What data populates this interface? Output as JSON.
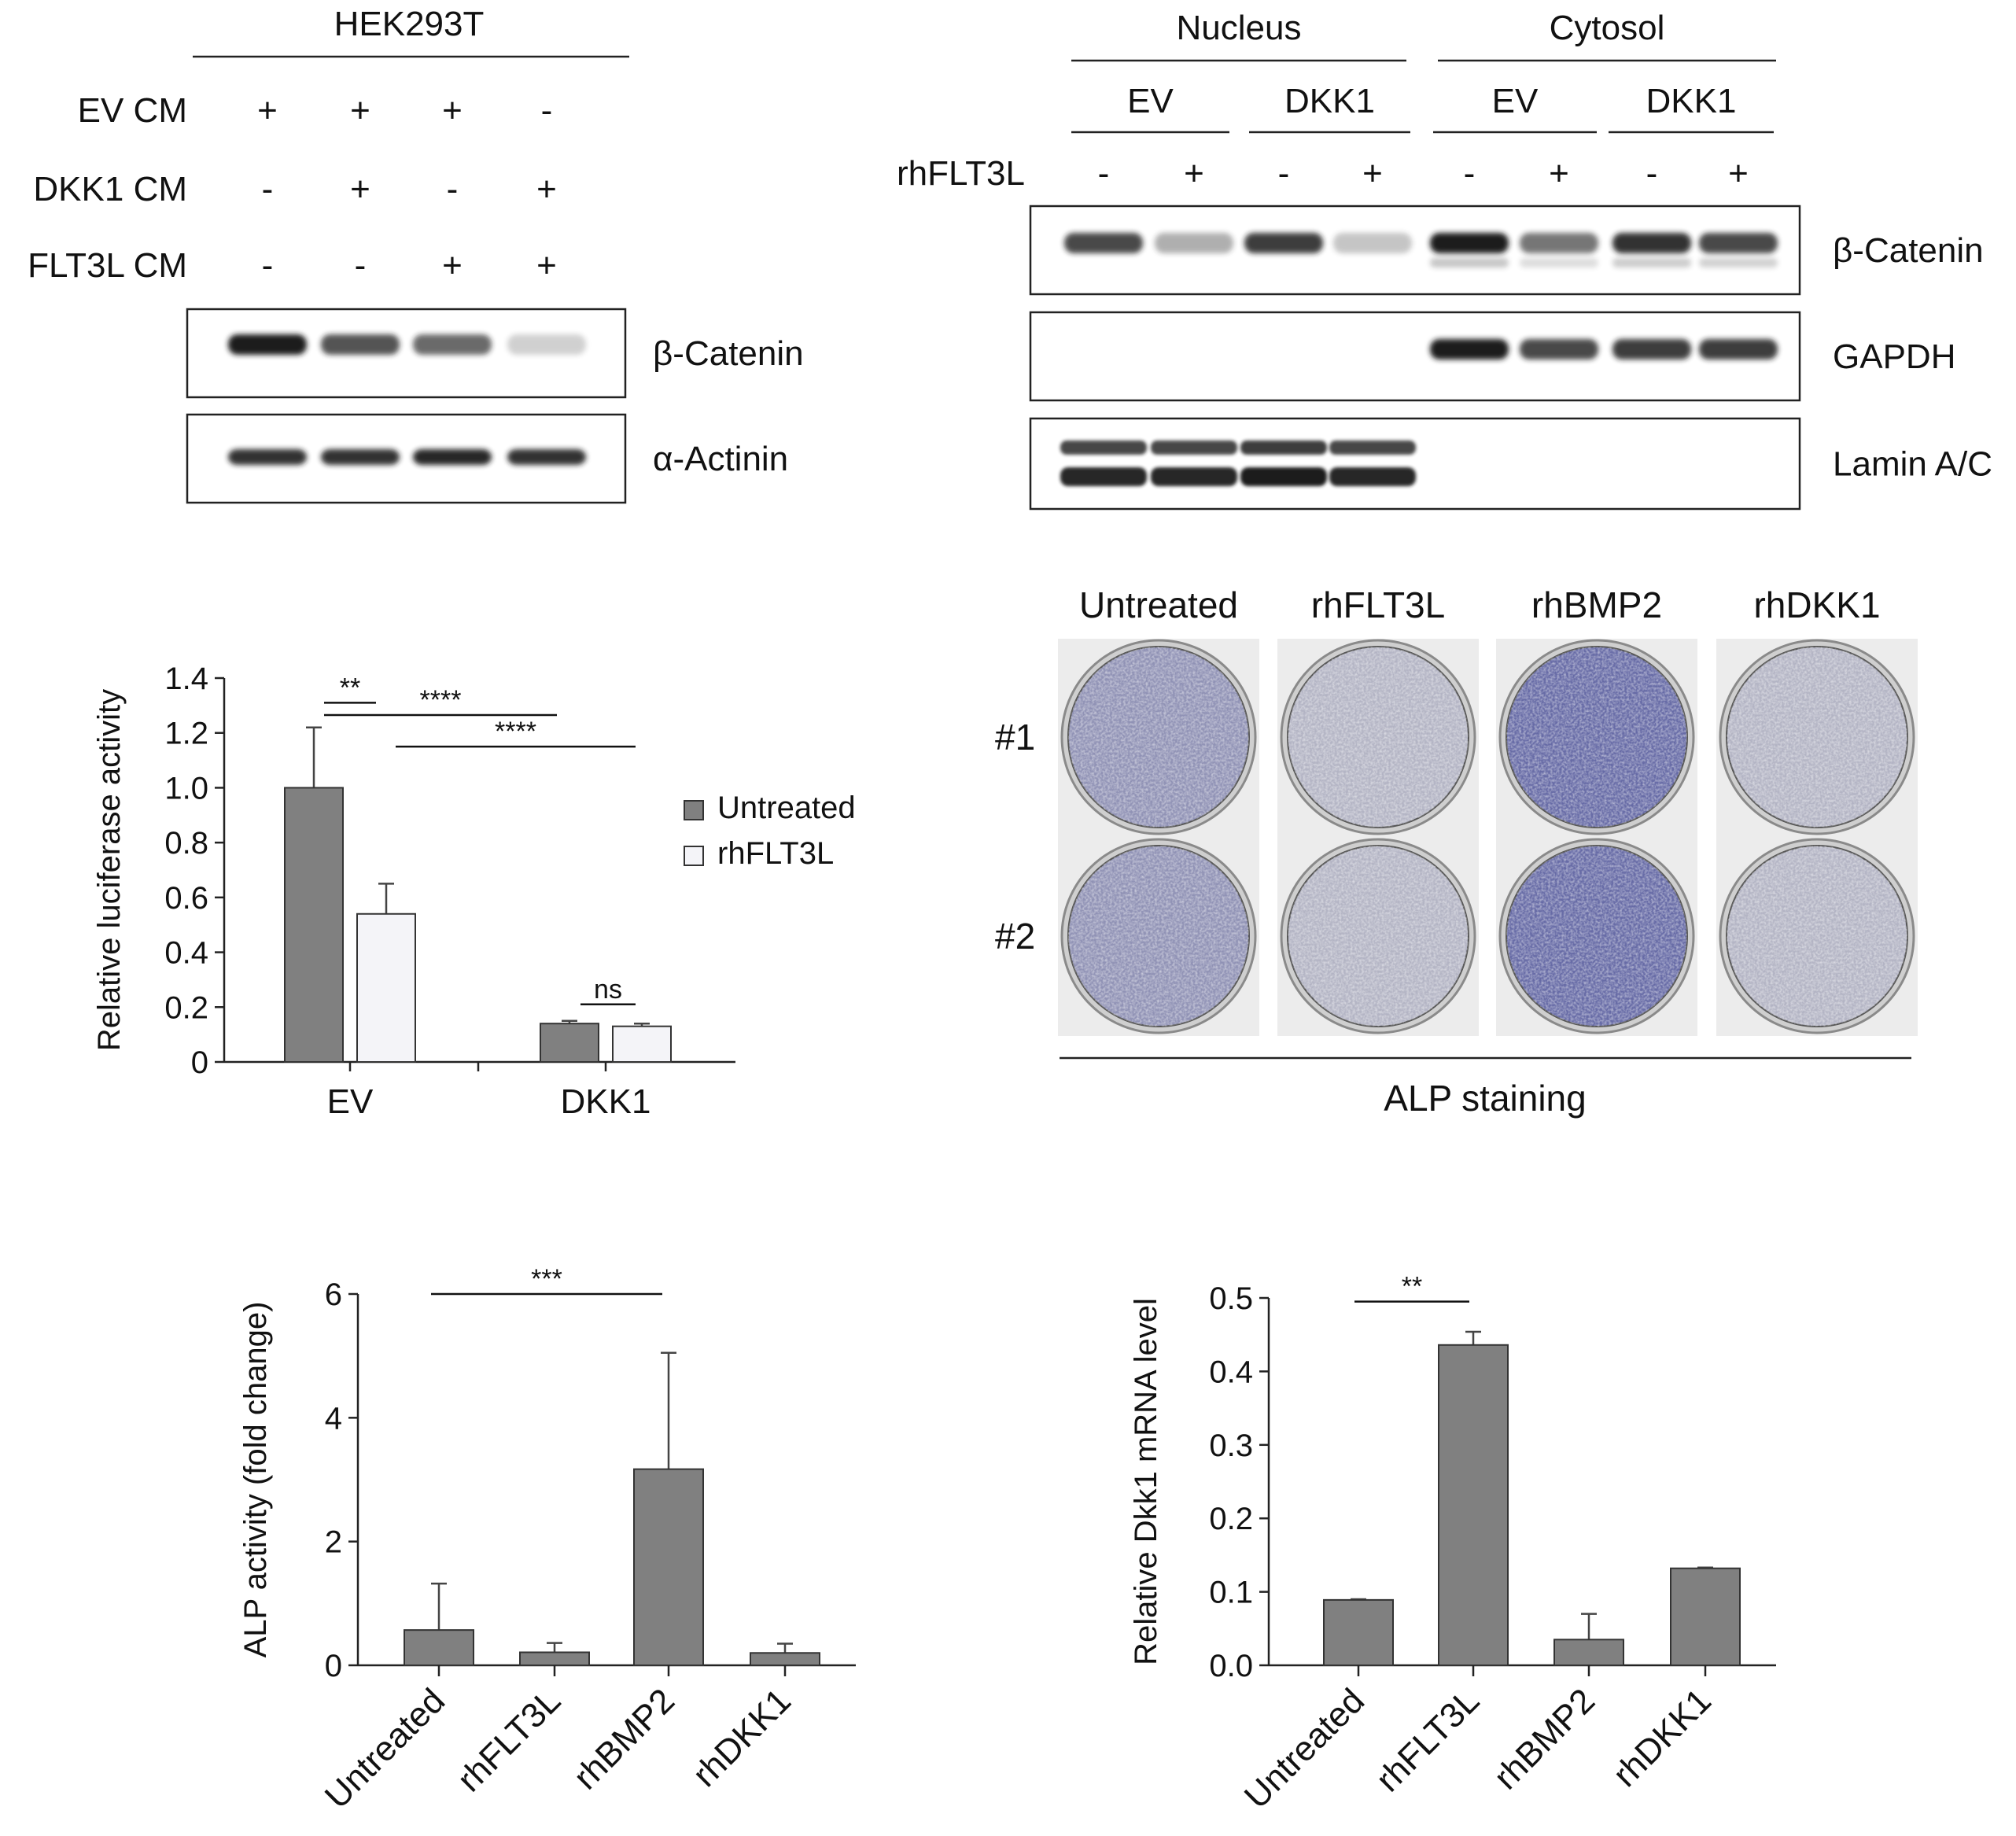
{
  "panel_a": {
    "header": "HEK293T",
    "rows": [
      {
        "label": "EV CM",
        "signs": [
          "+",
          "+",
          "+",
          "-"
        ]
      },
      {
        "label": "DKK1 CM",
        "signs": [
          "-",
          "+",
          "-",
          "+"
        ]
      },
      {
        "label": "FLT3L CM",
        "signs": [
          "-",
          "-",
          "+",
          "+"
        ]
      }
    ],
    "blots": [
      {
        "label": "β-Catenin",
        "intensity": [
          1.0,
          0.75,
          0.65,
          0.2
        ],
        "color": "#1a1a1a"
      },
      {
        "label": "α-Actinin",
        "intensity": [
          0.9,
          0.9,
          0.95,
          0.9
        ],
        "color": "#1a1a1a"
      }
    ]
  },
  "panel_b": {
    "fractions": [
      {
        "name": "Nucleus",
        "groups": [
          "EV",
          "DKK1"
        ]
      },
      {
        "name": "Cytosol",
        "groups": [
          "EV",
          "DKK1"
        ]
      }
    ],
    "treatment_label": "rhFLT3L",
    "signs": [
      "-",
      "+",
      "-",
      "+",
      "-",
      "+",
      "-",
      "+"
    ],
    "blots": [
      {
        "label": "β-Catenin",
        "intensity": [
          0.8,
          0.35,
          0.85,
          0.25,
          1.0,
          0.6,
          0.9,
          0.8
        ]
      },
      {
        "label": "GAPDH",
        "intensity": [
          0,
          0,
          0,
          0,
          1.0,
          0.8,
          0.85,
          0.85
        ]
      },
      {
        "label": "Lamin A/C",
        "intensity": [
          0.95,
          0.95,
          1.0,
          0.95,
          0,
          0,
          0,
          0
        ]
      }
    ]
  },
  "panel_d": {
    "columns": [
      "Untreated",
      "rhFLT3L",
      "rhBMP2",
      "rhDKK1"
    ],
    "rows": [
      "#1",
      "#2"
    ],
    "stain_level": [
      0.45,
      0.12,
      0.85,
      0.12
    ],
    "stain_color": "#4a4f9a",
    "footer": "ALP staining"
  },
  "chart_data": [
    {
      "type": "bar",
      "categories": [
        "EV",
        "DKK1"
      ],
      "series": [
        {
          "name": "Untreated",
          "values": [
            1.0,
            0.14
          ],
          "errors": [
            0.22,
            0.01
          ],
          "color": "#808080"
        },
        {
          "name": "rhFLT3L",
          "values": [
            0.54,
            0.13
          ],
          "errors": [
            0.11,
            0.01
          ],
          "color": "#f4f4f8"
        }
      ],
      "ylabel": "Relative luciferase activity",
      "ylim": [
        0,
        1.4
      ],
      "yticks": [
        "0",
        "0.2",
        "0.4",
        "0.6",
        "0.8",
        "1.0",
        "1.2",
        "1.4"
      ],
      "significance": [
        {
          "label": "**"
        },
        {
          "label": "****"
        },
        {
          "label": "****"
        },
        {
          "label": "ns"
        }
      ],
      "legend": "right"
    },
    {
      "type": "bar",
      "categories": [
        "Untreated",
        "rhFLT3L",
        "rhBMP2",
        "rhDKK1"
      ],
      "values": [
        0.57,
        0.21,
        3.17,
        0.2
      ],
      "errors": [
        0.75,
        0.15,
        1.88,
        0.15
      ],
      "color": "#808080",
      "ylabel": "ALP activity (fold change)",
      "ylim": [
        0,
        6
      ],
      "yticks": [
        "0",
        "2",
        "4",
        "6"
      ],
      "significance": [
        {
          "label": "***"
        }
      ]
    },
    {
      "type": "bar",
      "categories": [
        "Untreated",
        "rhFLT3L",
        "rhBMP2",
        "rhDKK1"
      ],
      "values": [
        0.089,
        0.436,
        0.035,
        0.132
      ],
      "errors": [
        0.001,
        0.018,
        0.035,
        0.001
      ],
      "color": "#808080",
      "ylabel": "Relative Dkk1 mRNA level",
      "ylim": [
        0,
        0.5
      ],
      "yticks": [
        "0.0",
        "0.1",
        "0.2",
        "0.3",
        "0.4",
        "0.5"
      ],
      "significance": [
        {
          "label": "**"
        }
      ]
    }
  ]
}
